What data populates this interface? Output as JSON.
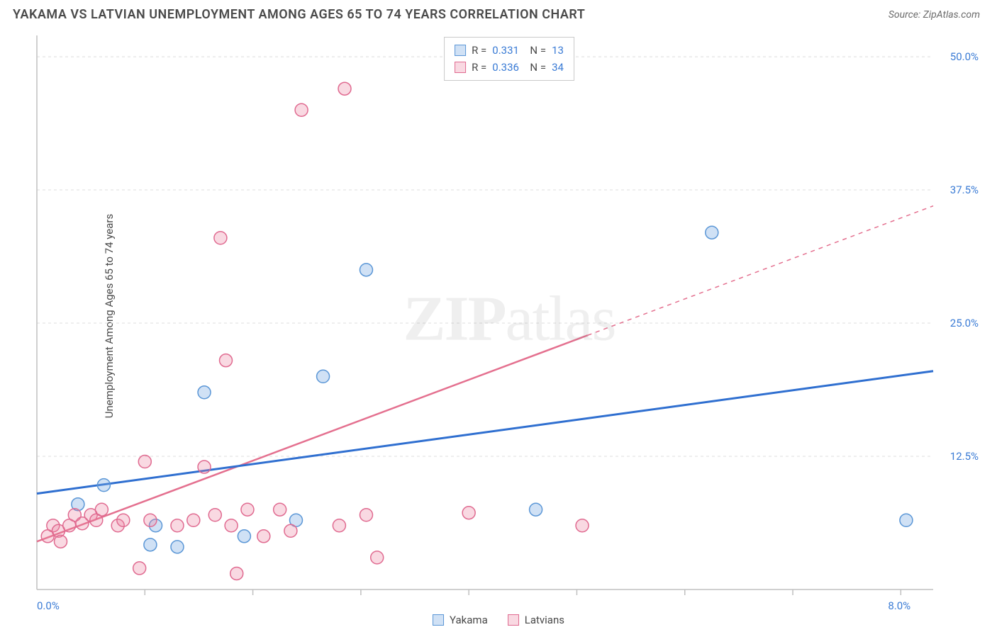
{
  "title": "YAKAMA VS LATVIAN UNEMPLOYMENT AMONG AGES 65 TO 74 YEARS CORRELATION CHART",
  "source": "Source: ZipAtlas.com",
  "y_axis_label": "Unemployment Among Ages 65 to 74 years",
  "watermark": {
    "bold": "ZIP",
    "light": "atlas"
  },
  "chart": {
    "type": "scatter",
    "xlim": [
      0,
      8.3
    ],
    "ylim": [
      0,
      52
    ],
    "x_origin_label": "0.0%",
    "x_max_label": "8.0%",
    "x_ticks": [
      1,
      2,
      3,
      4,
      5,
      6,
      7,
      8
    ],
    "y_ticks": [
      {
        "v": 12.5,
        "label": "12.5%"
      },
      {
        "v": 25.0,
        "label": "25.0%"
      },
      {
        "v": 37.5,
        "label": "37.5%"
      },
      {
        "v": 50.0,
        "label": "50.0%"
      }
    ],
    "background_color": "#ffffff",
    "grid_color": "#dcdcdc",
    "axis_color": "#c0c0c0",
    "series": [
      {
        "name": "Yakama",
        "marker_fill": "rgba(120,170,225,0.35)",
        "marker_stroke": "#5a96d6",
        "marker_radius": 9,
        "trend_color": "#2f6fd0",
        "trend_width": 3,
        "trend": {
          "x1": 0,
          "y1": 9.0,
          "x2": 8.3,
          "y2": 20.5,
          "dash_from_x": null
        },
        "stats": {
          "R": "0.331",
          "N": "13"
        },
        "points": [
          {
            "x": 0.38,
            "y": 8.0
          },
          {
            "x": 0.62,
            "y": 9.8
          },
          {
            "x": 1.05,
            "y": 4.2
          },
          {
            "x": 1.1,
            "y": 6.0
          },
          {
            "x": 1.3,
            "y": 4.0
          },
          {
            "x": 1.55,
            "y": 18.5
          },
          {
            "x": 1.92,
            "y": 5.0
          },
          {
            "x": 2.4,
            "y": 6.5
          },
          {
            "x": 2.65,
            "y": 20.0
          },
          {
            "x": 3.05,
            "y": 30.0
          },
          {
            "x": 4.62,
            "y": 7.5
          },
          {
            "x": 6.25,
            "y": 33.5
          },
          {
            "x": 8.05,
            "y": 6.5
          }
        ]
      },
      {
        "name": "Latvians",
        "marker_fill": "rgba(235,130,160,0.30)",
        "marker_stroke": "#e06a90",
        "marker_radius": 9,
        "trend_color": "#e4708f",
        "trend_width": 2.5,
        "trend": {
          "x1": 0,
          "y1": 4.5,
          "x2": 8.3,
          "y2": 36.0,
          "dash_from_x": 5.1
        },
        "stats": {
          "R": "0.336",
          "N": "34"
        },
        "points": [
          {
            "x": 0.1,
            "y": 5.0
          },
          {
            "x": 0.15,
            "y": 6.0
          },
          {
            "x": 0.2,
            "y": 5.5
          },
          {
            "x": 0.22,
            "y": 4.5
          },
          {
            "x": 0.3,
            "y": 6.0
          },
          {
            "x": 0.35,
            "y": 7.0
          },
          {
            "x": 0.42,
            "y": 6.2
          },
          {
            "x": 0.5,
            "y": 7.0
          },
          {
            "x": 0.55,
            "y": 6.5
          },
          {
            "x": 0.6,
            "y": 7.5
          },
          {
            "x": 0.75,
            "y": 6.0
          },
          {
            "x": 0.8,
            "y": 6.5
          },
          {
            "x": 0.95,
            "y": 2.0
          },
          {
            "x": 1.0,
            "y": 12.0
          },
          {
            "x": 1.05,
            "y": 6.5
          },
          {
            "x": 1.3,
            "y": 6.0
          },
          {
            "x": 1.45,
            "y": 6.5
          },
          {
            "x": 1.55,
            "y": 11.5
          },
          {
            "x": 1.65,
            "y": 7.0
          },
          {
            "x": 1.7,
            "y": 33.0
          },
          {
            "x": 1.75,
            "y": 21.5
          },
          {
            "x": 1.8,
            "y": 6.0
          },
          {
            "x": 1.85,
            "y": 1.5
          },
          {
            "x": 1.95,
            "y": 7.5
          },
          {
            "x": 2.1,
            "y": 5.0
          },
          {
            "x": 2.25,
            "y": 7.5
          },
          {
            "x": 2.35,
            "y": 5.5
          },
          {
            "x": 2.45,
            "y": 45.0
          },
          {
            "x": 2.8,
            "y": 6.0
          },
          {
            "x": 2.85,
            "y": 47.0
          },
          {
            "x": 3.05,
            "y": 7.0
          },
          {
            "x": 3.15,
            "y": 3.0
          },
          {
            "x": 4.0,
            "y": 7.2
          },
          {
            "x": 5.05,
            "y": 6.0
          }
        ]
      }
    ],
    "legend_bottom": [
      {
        "label": "Yakama",
        "fill": "rgba(120,170,225,0.35)",
        "stroke": "#5a96d6"
      },
      {
        "label": "Latvians",
        "fill": "rgba(235,130,160,0.30)",
        "stroke": "#e06a90"
      }
    ]
  }
}
